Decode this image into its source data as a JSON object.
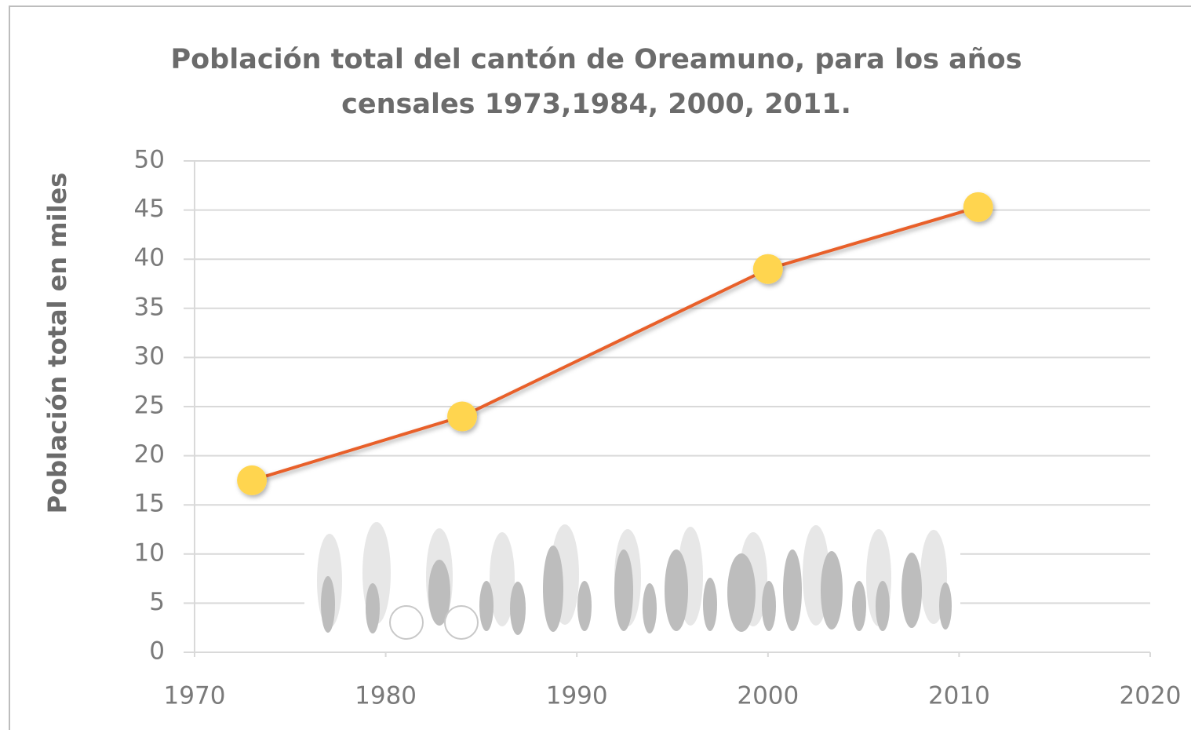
{
  "chart_data": {
    "type": "line",
    "title": "Población total del cantón de Oreamuno, para los años censales 1973,1984, 2000, 2011.",
    "y_label": "Población total en miles",
    "x": [
      1973,
      1984,
      2000,
      2011
    ],
    "values": [
      17.5,
      24.0,
      39.0,
      45.3
    ],
    "color": "#E8602C",
    "marker_color": "#FFD54F",
    "xlim": [
      1970,
      2020
    ],
    "xticks": [
      1970,
      1980,
      1990,
      2000,
      2010,
      2020
    ],
    "ylim": [
      0,
      50
    ],
    "yticks": [
      0,
      5,
      10,
      15,
      20,
      25,
      30,
      35,
      40,
      45,
      50
    ],
    "grid": true
  }
}
